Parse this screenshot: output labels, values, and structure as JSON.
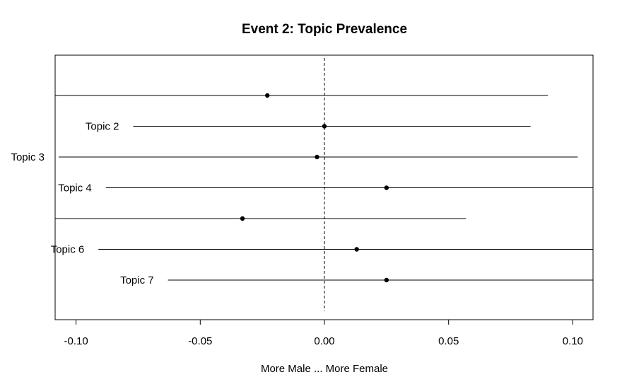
{
  "chart_data": {
    "type": "scatter",
    "title": "Event 2: Topic Prevalence",
    "xlabel": "More Male ... More Female",
    "ylabel": "",
    "xlim": [
      -0.1,
      0.1
    ],
    "x_ticks": [
      "-0.10",
      "-0.05",
      "0.00",
      "0.05",
      "0.10"
    ],
    "reference_line_x": 0.0,
    "grid": false,
    "series": [
      {
        "points": [
          {
            "label": "",
            "estimate": -0.023,
            "ci_low": -0.124,
            "ci_high": 0.09
          },
          {
            "label": "Topic 2",
            "estimate": 0.0,
            "ci_low": -0.077,
            "ci_high": 0.083
          },
          {
            "label": "Topic 3",
            "estimate": -0.003,
            "ci_low": -0.107,
            "ci_high": 0.102
          },
          {
            "label": "Topic 4",
            "estimate": 0.025,
            "ci_low": -0.088,
            "ci_high": 0.112
          },
          {
            "label": "",
            "estimate": -0.033,
            "ci_low": -0.13,
            "ci_high": 0.057
          },
          {
            "label": "Topic 6",
            "estimate": 0.013,
            "ci_low": -0.091,
            "ci_high": 0.115
          },
          {
            "label": "Topic 7",
            "estimate": 0.025,
            "ci_low": -0.063,
            "ci_high": 0.118
          }
        ]
      }
    ]
  }
}
